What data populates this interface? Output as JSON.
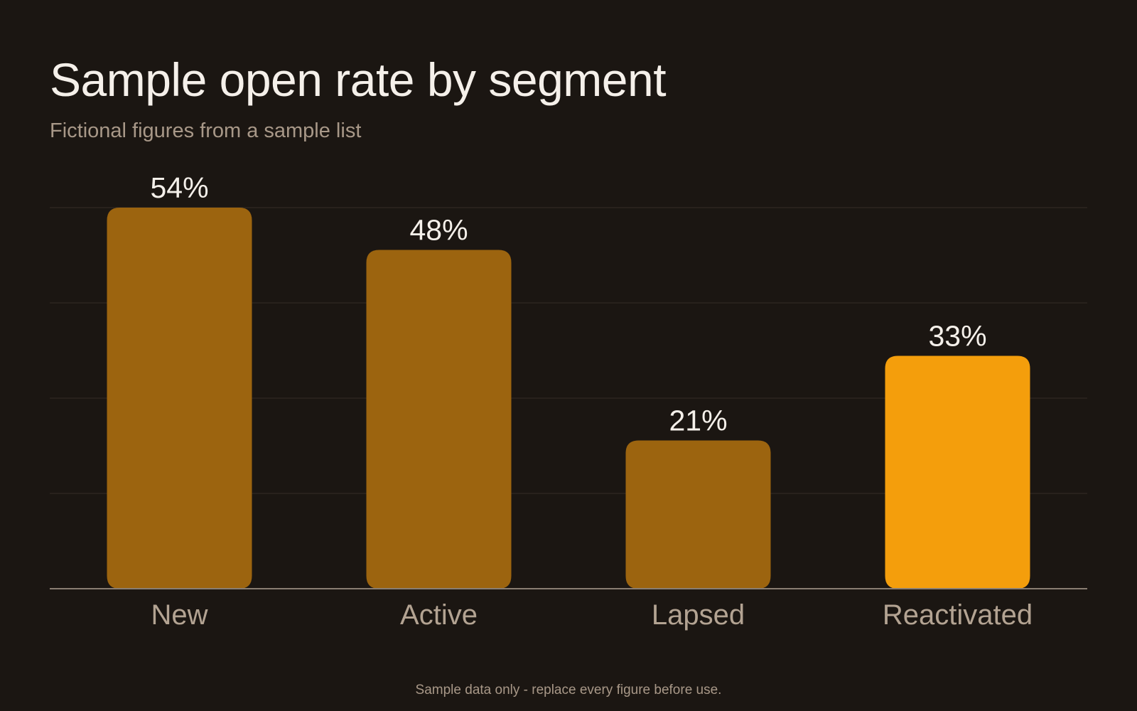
{
  "chart_data": {
    "type": "bar",
    "title": "Sample open rate by segment",
    "subtitle": "Fictional figures from a sample list",
    "categories": [
      "New",
      "Active",
      "Lapsed",
      "Reactivated"
    ],
    "values": [
      54,
      48,
      21,
      33
    ],
    "value_labels": [
      "54%",
      "48%",
      "21%",
      "33%"
    ],
    "ylim": [
      0,
      54
    ],
    "grid": true,
    "colors": {
      "bar": "#9c640f",
      "highlight_bar": "#f49e0c",
      "background": "#1b1612",
      "gridline": "#352c25",
      "axis": "#8a7e72"
    },
    "highlight_index": 3
  },
  "footer": "Sample data only - replace every figure before use."
}
